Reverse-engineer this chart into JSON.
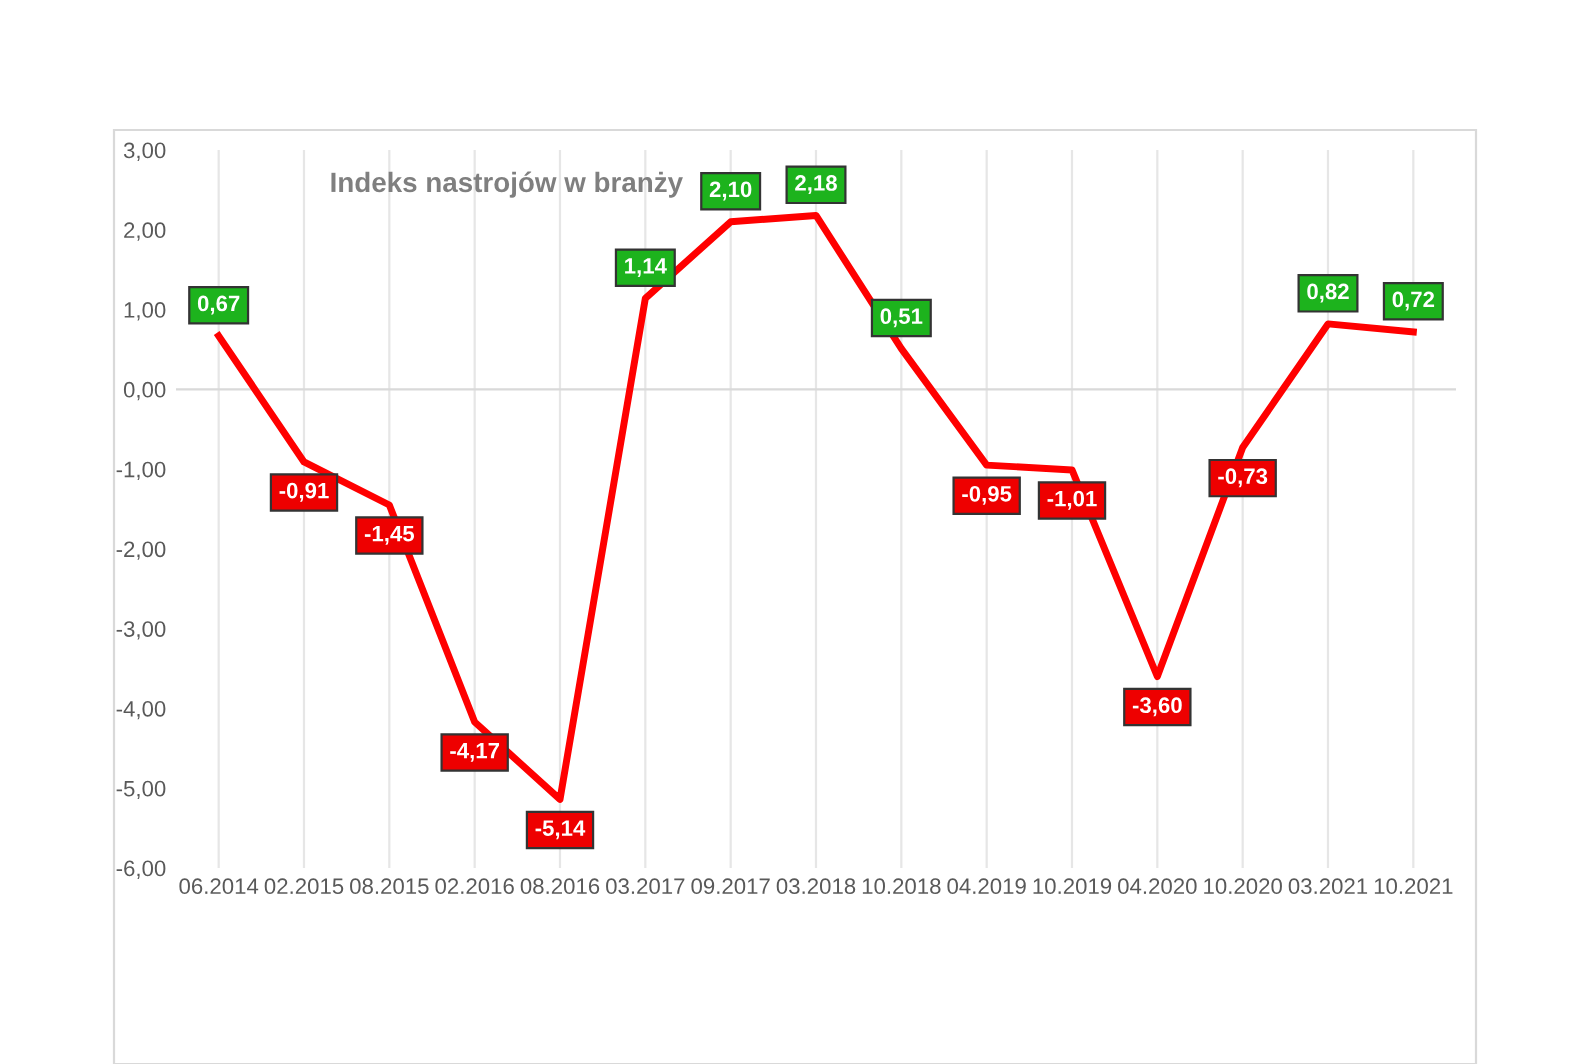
{
  "chart_data": {
    "type": "line",
    "title": "Indeks nastrojów w branży",
    "categories": [
      "06.2014",
      "02.2015",
      "08.2015",
      "02.2016",
      "08.2016",
      "03.2017",
      "09.2017",
      "03.2018",
      "10.2018",
      "04.2019",
      "10.2019",
      "04.2020",
      "10.2020",
      "03.2021",
      "10.2021"
    ],
    "series": [
      {
        "color": "#ff0000",
        "values": [
          0.67,
          -0.91,
          -1.45,
          -4.17,
          -5.14,
          1.14,
          2.1,
          2.18,
          0.51,
          -0.95,
          -1.01,
          -3.6,
          -0.73,
          0.82,
          0.72
        ],
        "value_labels": [
          "0,67",
          "-0,91",
          "-1,45",
          "-4,17",
          "-5,14",
          "1,14",
          "2,10",
          "2,18",
          "0,51",
          "-0,95",
          "-1,01",
          "-3,60",
          "-0,73",
          "0,82",
          "0,72"
        ]
      }
    ],
    "ylim": [
      -6,
      3
    ],
    "yticks": [
      {
        "value": -6,
        "label": "-6,00"
      },
      {
        "value": -5,
        "label": "-5,00"
      },
      {
        "value": -4,
        "label": "-4,00"
      },
      {
        "value": -3,
        "label": "-3,00"
      },
      {
        "value": -2,
        "label": "-2,00"
      },
      {
        "value": -1,
        "label": "-1,00"
      },
      {
        "value": 0,
        "label": "0,00"
      },
      {
        "value": 1,
        "label": "1,00"
      },
      {
        "value": 2,
        "label": "2,00"
      },
      {
        "value": 3,
        "label": "3,00"
      }
    ],
    "grid": "x",
    "marker": "none",
    "line_style": "solid",
    "legend": false
  }
}
